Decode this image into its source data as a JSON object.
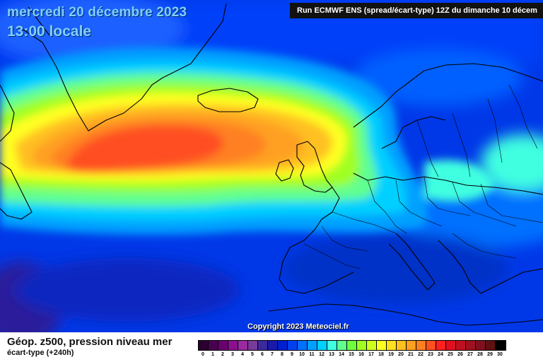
{
  "header": {
    "date": "mercredi 20 décembre 2023",
    "time": "13:00 locale",
    "run": "Run ECMWF ENS (spread/écart-type) 12Z du dimanche 10 décem"
  },
  "copyright": "Copyright 2023 Meteociel.fr",
  "footer": {
    "param_title": "Géop. z500, pression niveau mer",
    "param_sub": "écart-type   (+240h)"
  },
  "scale": {
    "labels": [
      "0",
      "1",
      "2",
      "3",
      "4",
      "5",
      "6",
      "7",
      "8",
      "9",
      "10",
      "11",
      "12",
      "13",
      "14",
      "15",
      "16",
      "17",
      "18",
      "19",
      "20",
      "21",
      "22",
      "23",
      "24",
      "25",
      "26",
      "27",
      "28",
      "29",
      "30"
    ],
    "colors": [
      "#2a0030",
      "#4a0050",
      "#6a0070",
      "#8a1090",
      "#9a2aa0",
      "#7a3a9a",
      "#3a2a9a",
      "#1a1aaa",
      "#0020d0",
      "#0040f0",
      "#0070ff",
      "#00a0ff",
      "#00d0ff",
      "#40ffe0",
      "#60ff90",
      "#70ff40",
      "#a0ff20",
      "#d0ff20",
      "#ffff20",
      "#ffe020",
      "#ffc020",
      "#ffa020",
      "#ff8020",
      "#ff5020",
      "#ff2020",
      "#e01020",
      "#c01020",
      "#a01020",
      "#801020",
      "#601010",
      "#000000"
    ]
  }
}
